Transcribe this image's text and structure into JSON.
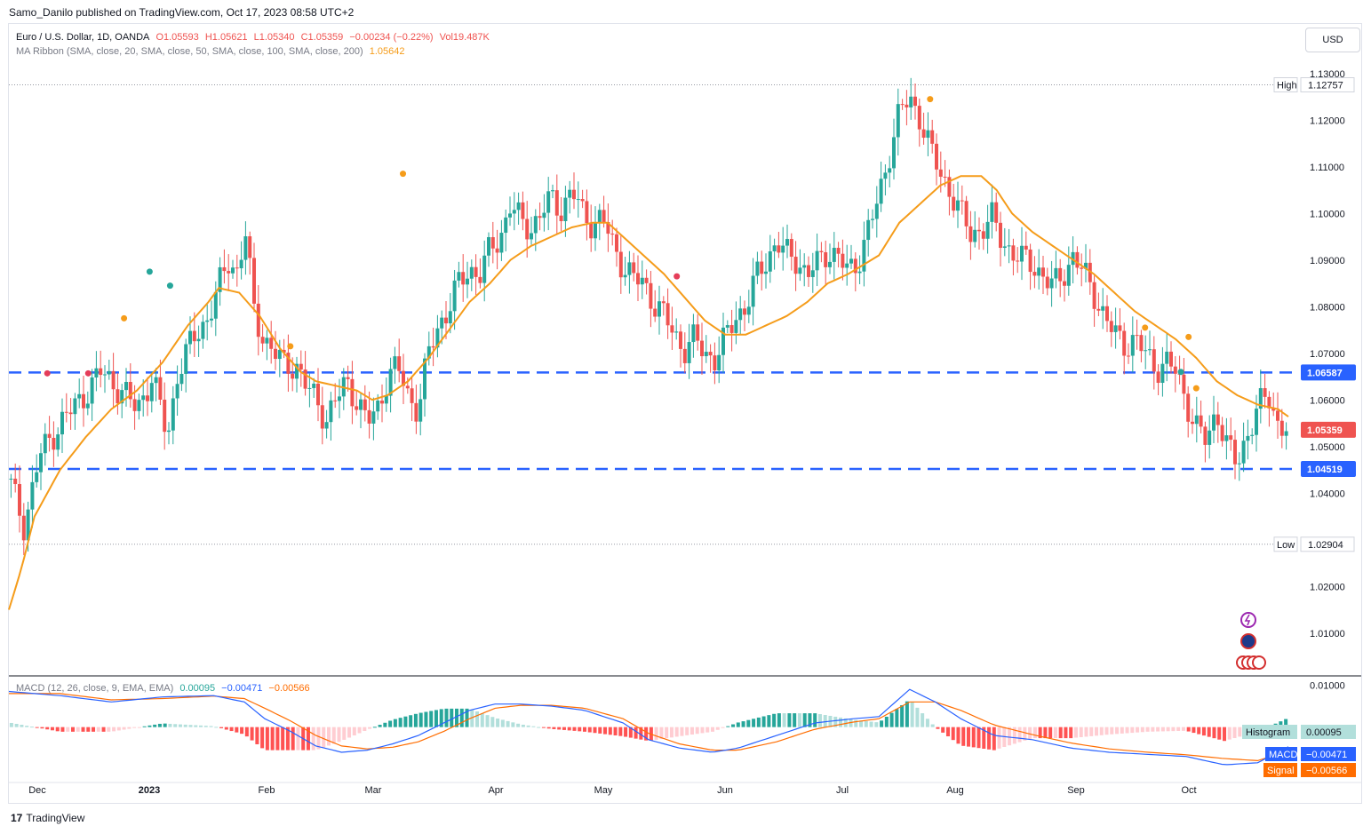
{
  "header": {
    "published": "Samo_Danilo published on TradingView.com, Oct 17, 2023 08:58 UTC+2",
    "currency_button": "USD"
  },
  "legend": {
    "symbol": "Euro / U.S. Dollar, 1D, OANDA",
    "open": "O1.05593",
    "high": "H1.05621",
    "low": "L1.05340",
    "close": "C1.05359",
    "change": "−0.00234 (−0.22%)",
    "volume": "Vol19.487K",
    "ma_label": "MA Ribbon (SMA, close, 20, SMA, close, 50, SMA, close, 100, SMA, close, 200)",
    "ma_value": "1.05642"
  },
  "macd_legend": {
    "label": "MACD (12, 26, close, 9, EMA, EMA)",
    "hist": "0.00095",
    "macd": "−0.00471",
    "signal": "−0.00566"
  },
  "footer": {
    "brand": "TradingView",
    "logo": "17"
  },
  "colors": {
    "up": "#26a69a",
    "down": "#ef5350",
    "ma": "#f59c1a",
    "level": "#2962ff",
    "macd": "#2962ff",
    "signal": "#ff6d00"
  },
  "chart_data": [
    {
      "type": "candlestick",
      "title": "Euro / U.S. Dollar, 1D, OANDA",
      "x_labels": [
        "Dec",
        "2023",
        "Feb",
        "Mar",
        "Apr",
        "May",
        "Jun",
        "Jul",
        "Aug",
        "Sep",
        "Oct"
      ],
      "y_ticks": [
        "1.13000",
        "1.12000",
        "1.11000",
        "1.10000",
        "1.09000",
        "1.08000",
        "1.07000",
        "1.06000",
        "1.05000",
        "1.04000",
        "1.02000",
        "1.01000"
      ],
      "ylim": [
        1.001,
        1.133
      ],
      "last_price": "1.05359",
      "high": {
        "label": "High",
        "value": "1.12757"
      },
      "low": {
        "label": "Low",
        "value": "1.02904"
      },
      "levels": [
        {
          "value": "1.06587",
          "style": "dashed"
        },
        {
          "value": "1.04519",
          "style": "dashed"
        }
      ],
      "ma_keypoints": [
        [
          0,
          1.015
        ],
        [
          5,
          1.024
        ],
        [
          10,
          1.035
        ],
        [
          20,
          1.045
        ],
        [
          30,
          1.052
        ],
        [
          40,
          1.058
        ],
        [
          50,
          1.062
        ],
        [
          60,
          1.068
        ],
        [
          70,
          1.076
        ],
        [
          78,
          1.081
        ],
        [
          82,
          1.084
        ],
        [
          90,
          1.083
        ],
        [
          98,
          1.078
        ],
        [
          106,
          1.071
        ],
        [
          114,
          1.066
        ],
        [
          120,
          1.064
        ],
        [
          128,
          1.063
        ],
        [
          136,
          1.062
        ],
        [
          142,
          1.06
        ],
        [
          148,
          1.061
        ],
        [
          156,
          1.064
        ],
        [
          164,
          1.069
        ],
        [
          172,
          1.075
        ],
        [
          180,
          1.081
        ],
        [
          188,
          1.085
        ],
        [
          196,
          1.09
        ],
        [
          204,
          1.093
        ],
        [
          212,
          1.095
        ],
        [
          220,
          1.097
        ],
        [
          228,
          1.098
        ],
        [
          234,
          1.098
        ],
        [
          240,
          1.095
        ],
        [
          248,
          1.091
        ],
        [
          256,
          1.087
        ],
        [
          264,
          1.082
        ],
        [
          272,
          1.077
        ],
        [
          280,
          1.074
        ],
        [
          288,
          1.074
        ],
        [
          296,
          1.076
        ],
        [
          304,
          1.078
        ],
        [
          312,
          1.081
        ],
        [
          320,
          1.085
        ],
        [
          328,
          1.087
        ],
        [
          334,
          1.089
        ],
        [
          340,
          1.091
        ],
        [
          348,
          1.098
        ],
        [
          356,
          1.102
        ],
        [
          364,
          1.106
        ],
        [
          372,
          1.108
        ],
        [
          380,
          1.108
        ],
        [
          386,
          1.105
        ],
        [
          392,
          1.1
        ],
        [
          400,
          1.096
        ],
        [
          408,
          1.093
        ],
        [
          416,
          1.09
        ],
        [
          424,
          1.087
        ],
        [
          432,
          1.083
        ],
        [
          440,
          1.079
        ],
        [
          448,
          1.076
        ],
        [
          456,
          1.073
        ],
        [
          464,
          1.069
        ],
        [
          472,
          1.064
        ],
        [
          480,
          1.061
        ],
        [
          488,
          1.059
        ],
        [
          496,
          1.058
        ],
        [
          500,
          1.0564
        ]
      ],
      "closes_path": [
        [
          0,
          1.043
        ],
        [
          6,
          1.033
        ],
        [
          12,
          1.048
        ],
        [
          20,
          1.055
        ],
        [
          28,
          1.06
        ],
        [
          36,
          1.066
        ],
        [
          44,
          1.062
        ],
        [
          50,
          1.058
        ],
        [
          56,
          1.065
        ],
        [
          62,
          1.052
        ],
        [
          66,
          1.066
        ],
        [
          72,
          1.073
        ],
        [
          78,
          1.078
        ],
        [
          82,
          1.084
        ],
        [
          86,
          1.09
        ],
        [
          90,
          1.087
        ],
        [
          92,
          1.098
        ],
        [
          96,
          1.078
        ],
        [
          100,
          1.073
        ],
        [
          104,
          1.07
        ],
        [
          108,
          1.067
        ],
        [
          112,
          1.068
        ],
        [
          116,
          1.063
        ],
        [
          120,
          1.06
        ],
        [
          124,
          1.056
        ],
        [
          128,
          1.06
        ],
        [
          132,
          1.064
        ],
        [
          136,
          1.06
        ],
        [
          140,
          1.055
        ],
        [
          144,
          1.058
        ],
        [
          148,
          1.065
        ],
        [
          152,
          1.067
        ],
        [
          156,
          1.061
        ],
        [
          160,
          1.058
        ],
        [
          164,
          1.07
        ],
        [
          168,
          1.076
        ],
        [
          172,
          1.08
        ],
        [
          176,
          1.085
        ],
        [
          180,
          1.088
        ],
        [
          184,
          1.087
        ],
        [
          188,
          1.092
        ],
        [
          192,
          1.095
        ],
        [
          196,
          1.102
        ],
        [
          200,
          1.098
        ],
        [
          204,
          1.097
        ],
        [
          208,
          1.1
        ],
        [
          212,
          1.103
        ],
        [
          216,
          1.101
        ],
        [
          220,
          1.105
        ],
        [
          224,
          1.1
        ],
        [
          228,
          1.098
        ],
        [
          232,
          1.099
        ],
        [
          236,
          1.093
        ],
        [
          240,
          1.089
        ],
        [
          244,
          1.086
        ],
        [
          248,
          1.085
        ],
        [
          252,
          1.081
        ],
        [
          256,
          1.078
        ],
        [
          260,
          1.074
        ],
        [
          264,
          1.071
        ],
        [
          268,
          1.073
        ],
        [
          272,
          1.07
        ],
        [
          276,
          1.069
        ],
        [
          280,
          1.073
        ],
        [
          284,
          1.078
        ],
        [
          288,
          1.08
        ],
        [
          292,
          1.086
        ],
        [
          296,
          1.09
        ],
        [
          300,
          1.094
        ],
        [
          304,
          1.091
        ],
        [
          308,
          1.09
        ],
        [
          312,
          1.087
        ],
        [
          316,
          1.089
        ],
        [
          320,
          1.092
        ],
        [
          324,
          1.091
        ],
        [
          328,
          1.087
        ],
        [
          332,
          1.09
        ],
        [
          336,
          1.097
        ],
        [
          340,
          1.103
        ],
        [
          344,
          1.113
        ],
        [
          348,
          1.122
        ],
        [
          352,
          1.124
        ],
        [
          356,
          1.121
        ],
        [
          360,
          1.114
        ],
        [
          364,
          1.108
        ],
        [
          368,
          1.105
        ],
        [
          372,
          1.1
        ],
        [
          376,
          1.095
        ],
        [
          380,
          1.097
        ],
        [
          384,
          1.099
        ],
        [
          388,
          1.094
        ],
        [
          392,
          1.092
        ],
        [
          396,
          1.09
        ],
        [
          400,
          1.089
        ],
        [
          404,
          1.087
        ],
        [
          408,
          1.084
        ],
        [
          412,
          1.087
        ],
        [
          416,
          1.091
        ],
        [
          420,
          1.087
        ],
        [
          424,
          1.083
        ],
        [
          428,
          1.078
        ],
        [
          432,
          1.074
        ],
        [
          436,
          1.072
        ],
        [
          440,
          1.073
        ],
        [
          444,
          1.07
        ],
        [
          448,
          1.067
        ],
        [
          452,
          1.068
        ],
        [
          456,
          1.066
        ],
        [
          460,
          1.06
        ],
        [
          464,
          1.054
        ],
        [
          468,
          1.051
        ],
        [
          472,
          1.058
        ],
        [
          476,
          1.05
        ],
        [
          480,
          1.046
        ],
        [
          484,
          1.053
        ],
        [
          488,
          1.058
        ],
        [
          492,
          1.061
        ],
        [
          496,
          1.055
        ],
        [
          500,
          1.0536
        ]
      ],
      "signals": [
        {
          "x": 15,
          "y": 1.0657,
          "color": "#e53d59"
        },
        {
          "x": 31,
          "y": 1.0657,
          "color": "#e53d59"
        },
        {
          "x": 45,
          "y": 1.0775,
          "color": "#f59c1a"
        },
        {
          "x": 55,
          "y": 1.0875,
          "color": "#26a69a"
        },
        {
          "x": 63,
          "y": 1.0845,
          "color": "#26a69a"
        },
        {
          "x": 110,
          "y": 1.0715,
          "color": "#f59c1a"
        },
        {
          "x": 154,
          "y": 1.1085,
          "color": "#f59c1a"
        },
        {
          "x": 261,
          "y": 1.0865,
          "color": "#e53d59"
        },
        {
          "x": 360,
          "y": 1.1245,
          "color": "#f59c1a"
        },
        {
          "x": 444,
          "y": 1.0755,
          "color": "#f59c1a"
        },
        {
          "x": 458,
          "y": 1.066,
          "color": "#26a69a"
        },
        {
          "x": 461,
          "y": 1.0735,
          "color": "#f59c1a"
        },
        {
          "x": 464,
          "y": 1.0625,
          "color": "#f59c1a"
        }
      ]
    },
    {
      "type": "macd",
      "title": "MACD (12, 26, close, 9, EMA, EMA)",
      "y_ticks": [
        "0.01000"
      ],
      "ylim": [
        -0.013,
        0.012
      ],
      "histogram": {
        "label": "Histogram",
        "value": "0.00095"
      },
      "macd": {
        "label": "MACD",
        "value": "−0.00471"
      },
      "signal": {
        "label": "Signal",
        "value": "−0.00566"
      },
      "macd_keypoints": [
        [
          0,
          0.0085
        ],
        [
          20,
          0.0075
        ],
        [
          40,
          0.006
        ],
        [
          60,
          0.0072
        ],
        [
          80,
          0.0075
        ],
        [
          92,
          0.006
        ],
        [
          100,
          0.002
        ],
        [
          110,
          -0.001
        ],
        [
          120,
          -0.0045
        ],
        [
          130,
          -0.006
        ],
        [
          140,
          -0.0055
        ],
        [
          150,
          -0.004
        ],
        [
          160,
          -0.002
        ],
        [
          170,
          0.001
        ],
        [
          180,
          0.004
        ],
        [
          190,
          0.0055
        ],
        [
          200,
          0.0055
        ],
        [
          212,
          0.005
        ],
        [
          225,
          0.004
        ],
        [
          240,
          0.001
        ],
        [
          250,
          -0.003
        ],
        [
          262,
          -0.005
        ],
        [
          275,
          -0.006
        ],
        [
          285,
          -0.005
        ],
        [
          300,
          -0.002
        ],
        [
          315,
          0.001
        ],
        [
          330,
          0.002
        ],
        [
          340,
          0.0025
        ],
        [
          352,
          0.009
        ],
        [
          362,
          0.006
        ],
        [
          372,
          0.002
        ],
        [
          385,
          -0.002
        ],
        [
          400,
          -0.003
        ],
        [
          415,
          -0.005
        ],
        [
          430,
          -0.006
        ],
        [
          445,
          -0.0065
        ],
        [
          460,
          -0.007
        ],
        [
          475,
          -0.009
        ],
        [
          488,
          -0.0085
        ],
        [
          500,
          -0.0047
        ]
      ],
      "signal_keypoints": [
        [
          0,
          0.008
        ],
        [
          20,
          0.008
        ],
        [
          40,
          0.0065
        ],
        [
          60,
          0.0068
        ],
        [
          80,
          0.0074
        ],
        [
          92,
          0.0068
        ],
        [
          100,
          0.0045
        ],
        [
          110,
          0.0015
        ],
        [
          120,
          -0.002
        ],
        [
          130,
          -0.0045
        ],
        [
          140,
          -0.0052
        ],
        [
          150,
          -0.0048
        ],
        [
          160,
          -0.0035
        ],
        [
          170,
          -0.001
        ],
        [
          180,
          0.002
        ],
        [
          190,
          0.0045
        ],
        [
          200,
          0.0052
        ],
        [
          212,
          0.0052
        ],
        [
          225,
          0.0045
        ],
        [
          240,
          0.002
        ],
        [
          250,
          -0.0015
        ],
        [
          262,
          -0.004
        ],
        [
          275,
          -0.0055
        ],
        [
          285,
          -0.0055
        ],
        [
          300,
          -0.0035
        ],
        [
          315,
          -0.0005
        ],
        [
          330,
          0.0012
        ],
        [
          340,
          0.002
        ],
        [
          352,
          0.006
        ],
        [
          362,
          0.006
        ],
        [
          372,
          0.004
        ],
        [
          385,
          0.0005
        ],
        [
          400,
          -0.0018
        ],
        [
          415,
          -0.0038
        ],
        [
          430,
          -0.0052
        ],
        [
          445,
          -0.006
        ],
        [
          460,
          -0.0066
        ],
        [
          475,
          -0.0075
        ],
        [
          488,
          -0.008
        ],
        [
          500,
          -0.0057
        ]
      ]
    }
  ]
}
